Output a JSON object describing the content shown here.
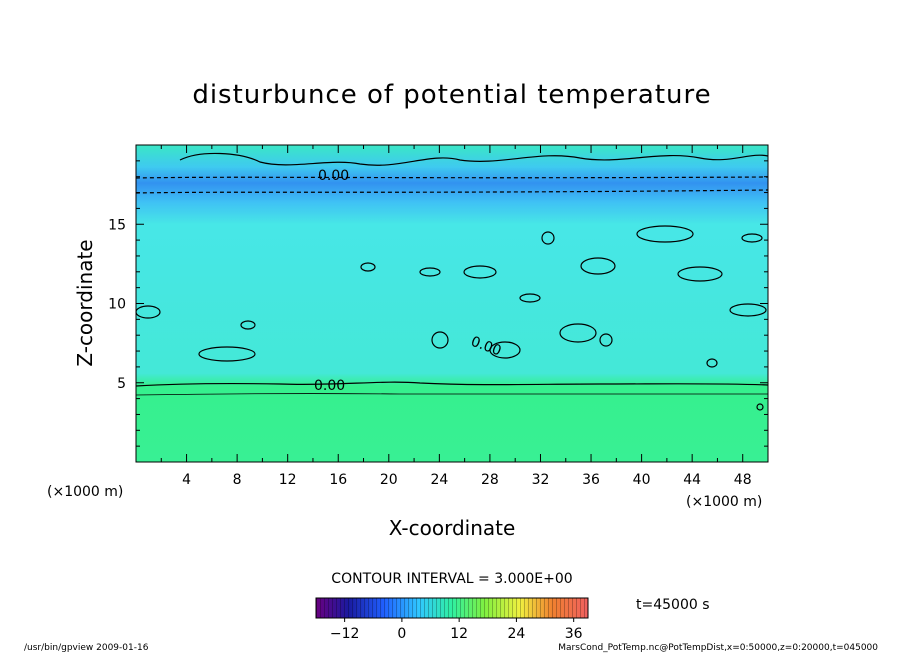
{
  "chart_data": {
    "type": "heatmap",
    "title": "disturbunce of potential temperature",
    "xlabel": "X-coordinate",
    "ylabel": "Z-coordinate",
    "x_unit": "(×1000 m)",
    "y_unit": "(×1000 m)",
    "xlim": [
      0,
      50
    ],
    "ylim": [
      0,
      20
    ],
    "x_ticks": [
      "4",
      "8",
      "12",
      "16",
      "20",
      "24",
      "28",
      "32",
      "36",
      "40",
      "44",
      "48"
    ],
    "y_ticks": [
      "5",
      "10",
      "15"
    ],
    "contour_labels": [
      "0.00",
      "0.00",
      "0.00"
    ],
    "contour_interval": "CONTOUR INTERVAL = 3.000E+00",
    "colorbar": {
      "min": -18,
      "max": 39,
      "ticks": [
        "−12",
        "0",
        "12",
        "24",
        "36"
      ],
      "tick_values": [
        -12,
        0,
        12,
        24,
        36
      ]
    },
    "bands": [
      {
        "z_from": 0,
        "z_to": 4.5,
        "value": 12
      },
      {
        "z_from": 4.5,
        "z_to": 16.5,
        "value": 5
      },
      {
        "z_from": 16.5,
        "z_to": 18.5,
        "value": -2
      },
      {
        "z_from": 18.5,
        "z_to": 20,
        "value": 6
      }
    ],
    "time_label": "t=45000 s"
  },
  "footer": {
    "left": "/usr/bin/gpview   2009-01-16",
    "right": "MarsCond_PotTemp.nc@PotTempDist,x=0:50000,z=0:20000,t=045000"
  }
}
